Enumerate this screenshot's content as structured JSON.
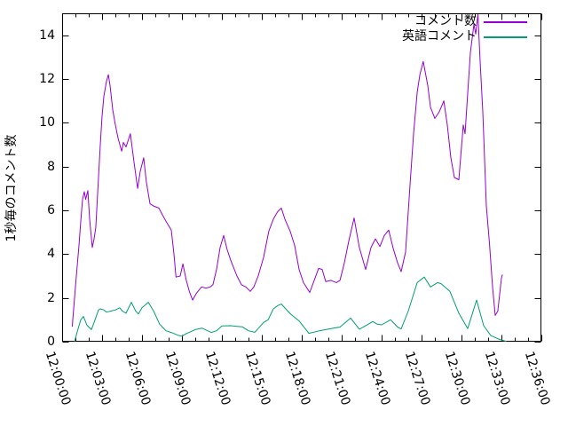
{
  "chart_data": {
    "type": "line",
    "title": "",
    "xlabel": "",
    "ylabel": "1秒毎のコメント数",
    "ylim": [
      0,
      15
    ],
    "y_tick_step": 2,
    "y_tick_labels": [
      "0",
      "2",
      "4",
      "6",
      "8",
      "10",
      "12",
      "14"
    ],
    "x_range_minutes": [
      0,
      36
    ],
    "x_tick_interval_minutes": 3,
    "x_minor_tick_interval_minutes": 1,
    "x_tick_labels": [
      "12:00:00",
      "12:03:00",
      "12:06:00",
      "12:09:00",
      "12:12:00",
      "12:15:00",
      "12:18:00",
      "12:21:00",
      "12:24:00",
      "12:27:00",
      "12:30:00",
      "12:33:00",
      "12:36:00"
    ],
    "grid": false,
    "background_color": "#ffffff",
    "axis_color": "#000000",
    "legend_position": "top-right-inside",
    "series": [
      {
        "name": "コメント数",
        "color": "#9400D3",
        "points": [
          [
            0.77,
            0.7
          ],
          [
            0.8,
            1.0
          ],
          [
            0.93,
            2.0
          ],
          [
            1.07,
            3.0
          ],
          [
            1.27,
            4.4
          ],
          [
            1.4,
            5.5
          ],
          [
            1.53,
            6.5
          ],
          [
            1.67,
            6.85
          ],
          [
            1.77,
            6.5
          ],
          [
            1.93,
            6.9
          ],
          [
            2.07,
            5.6
          ],
          [
            2.27,
            4.3
          ],
          [
            2.4,
            4.7
          ],
          [
            2.53,
            5.2
          ],
          [
            2.73,
            7.5
          ],
          [
            2.87,
            9.0
          ],
          [
            3.0,
            10.3
          ],
          [
            3.13,
            11.2
          ],
          [
            3.33,
            11.9
          ],
          [
            3.47,
            12.2
          ],
          [
            3.6,
            11.7
          ],
          [
            3.8,
            10.6
          ],
          [
            4.0,
            9.9
          ],
          [
            4.2,
            9.3
          ],
          [
            4.47,
            8.7
          ],
          [
            4.6,
            9.1
          ],
          [
            4.8,
            8.9
          ],
          [
            5.13,
            9.5
          ],
          [
            5.4,
            8.2
          ],
          [
            5.67,
            7.0
          ],
          [
            5.87,
            7.8
          ],
          [
            6.13,
            8.4
          ],
          [
            6.33,
            7.3
          ],
          [
            6.6,
            6.3
          ],
          [
            6.87,
            6.2
          ],
          [
            7.27,
            6.1
          ],
          [
            7.53,
            5.8
          ],
          [
            7.8,
            5.5
          ],
          [
            8.2,
            5.1
          ],
          [
            8.4,
            4.0
          ],
          [
            8.55,
            2.95
          ],
          [
            8.87,
            3.0
          ],
          [
            9.07,
            3.55
          ],
          [
            9.33,
            2.8
          ],
          [
            9.55,
            2.3
          ],
          [
            9.8,
            1.9
          ],
          [
            10.07,
            2.2
          ],
          [
            10.47,
            2.5
          ],
          [
            10.8,
            2.45
          ],
          [
            11.13,
            2.5
          ],
          [
            11.33,
            2.6
          ],
          [
            11.6,
            3.3
          ],
          [
            11.87,
            4.3
          ],
          [
            12.13,
            4.85
          ],
          [
            12.4,
            4.2
          ],
          [
            12.67,
            3.7
          ],
          [
            13.13,
            3.0
          ],
          [
            13.47,
            2.6
          ],
          [
            13.8,
            2.5
          ],
          [
            14.13,
            2.3
          ],
          [
            14.4,
            2.5
          ],
          [
            14.73,
            3.0
          ],
          [
            15.13,
            3.85
          ],
          [
            15.53,
            5.05
          ],
          [
            15.87,
            5.6
          ],
          [
            16.2,
            5.95
          ],
          [
            16.47,
            6.1
          ],
          [
            16.73,
            5.6
          ],
          [
            17.13,
            5.05
          ],
          [
            17.47,
            4.4
          ],
          [
            17.8,
            3.3
          ],
          [
            18.13,
            2.7
          ],
          [
            18.6,
            2.25
          ],
          [
            18.87,
            2.7
          ],
          [
            19.27,
            3.35
          ],
          [
            19.53,
            3.3
          ],
          [
            19.8,
            2.75
          ],
          [
            20.2,
            2.8
          ],
          [
            20.6,
            2.7
          ],
          [
            20.87,
            2.8
          ],
          [
            21.2,
            3.6
          ],
          [
            21.53,
            4.6
          ],
          [
            21.93,
            5.65
          ],
          [
            22.33,
            4.3
          ],
          [
            22.8,
            3.3
          ],
          [
            23.2,
            4.3
          ],
          [
            23.53,
            4.7
          ],
          [
            23.87,
            4.35
          ],
          [
            24.2,
            4.85
          ],
          [
            24.53,
            5.1
          ],
          [
            24.87,
            4.25
          ],
          [
            25.2,
            3.6
          ],
          [
            25.47,
            3.2
          ],
          [
            25.8,
            4.1
          ],
          [
            26.13,
            7.1
          ],
          [
            26.4,
            9.5
          ],
          [
            26.67,
            11.4
          ],
          [
            26.87,
            12.2
          ],
          [
            27.13,
            12.8
          ],
          [
            27.47,
            11.7
          ],
          [
            27.67,
            10.7
          ],
          [
            28.0,
            10.2
          ],
          [
            28.33,
            10.5
          ],
          [
            28.67,
            11.0
          ],
          [
            28.93,
            9.9
          ],
          [
            29.2,
            8.4
          ],
          [
            29.47,
            7.5
          ],
          [
            29.8,
            7.4
          ],
          [
            30.13,
            9.9
          ],
          [
            30.27,
            9.5
          ],
          [
            30.67,
            13.2
          ],
          [
            30.93,
            14.5
          ],
          [
            31.07,
            14.05
          ],
          [
            31.23,
            14.95
          ],
          [
            31.4,
            12.8
          ],
          [
            31.6,
            10.5
          ],
          [
            31.87,
            6.2
          ],
          [
            32.1,
            4.5
          ],
          [
            32.33,
            2.5
          ],
          [
            32.53,
            1.2
          ],
          [
            32.73,
            1.4
          ],
          [
            33.0,
            2.9
          ],
          [
            33.07,
            3.05
          ]
        ]
      },
      {
        "name": "英語コメント",
        "color": "#009E73",
        "points": [
          [
            0.93,
            0.0
          ],
          [
            1.13,
            0.45
          ],
          [
            1.4,
            1.0
          ],
          [
            1.6,
            1.15
          ],
          [
            1.87,
            0.75
          ],
          [
            2.2,
            0.55
          ],
          [
            2.47,
            1.0
          ],
          [
            2.73,
            1.45
          ],
          [
            2.87,
            1.5
          ],
          [
            3.13,
            1.45
          ],
          [
            3.33,
            1.35
          ],
          [
            3.67,
            1.4
          ],
          [
            4.0,
            1.45
          ],
          [
            4.33,
            1.55
          ],
          [
            4.53,
            1.4
          ],
          [
            4.8,
            1.3
          ],
          [
            5.2,
            1.8
          ],
          [
            5.53,
            1.4
          ],
          [
            5.73,
            1.27
          ],
          [
            6.0,
            1.55
          ],
          [
            6.47,
            1.8
          ],
          [
            6.87,
            1.4
          ],
          [
            7.33,
            0.8
          ],
          [
            7.8,
            0.5
          ],
          [
            8.2,
            0.42
          ],
          [
            8.67,
            0.3
          ],
          [
            9.0,
            0.25
          ],
          [
            9.33,
            0.37
          ],
          [
            10.0,
            0.55
          ],
          [
            10.5,
            0.62
          ],
          [
            11.2,
            0.42
          ],
          [
            11.6,
            0.5
          ],
          [
            12.0,
            0.72
          ],
          [
            12.67,
            0.73
          ],
          [
            13.13,
            0.7
          ],
          [
            13.53,
            0.68
          ],
          [
            14.0,
            0.5
          ],
          [
            14.47,
            0.43
          ],
          [
            15.13,
            0.88
          ],
          [
            15.47,
            1.0
          ],
          [
            15.87,
            1.5
          ],
          [
            16.2,
            1.65
          ],
          [
            16.47,
            1.72
          ],
          [
            17.13,
            1.28
          ],
          [
            17.8,
            0.95
          ],
          [
            18.53,
            0.38
          ],
          [
            19.33,
            0.5
          ],
          [
            20.2,
            0.6
          ],
          [
            20.87,
            0.67
          ],
          [
            21.67,
            1.08
          ],
          [
            22.33,
            0.57
          ],
          [
            23.0,
            0.8
          ],
          [
            23.33,
            0.92
          ],
          [
            23.67,
            0.8
          ],
          [
            24.0,
            0.77
          ],
          [
            24.67,
            1.0
          ],
          [
            25.2,
            0.67
          ],
          [
            25.47,
            0.58
          ],
          [
            26.0,
            1.4
          ],
          [
            26.67,
            2.7
          ],
          [
            27.2,
            2.95
          ],
          [
            27.67,
            2.5
          ],
          [
            28.2,
            2.7
          ],
          [
            28.47,
            2.65
          ],
          [
            29.13,
            2.3
          ],
          [
            29.8,
            1.3
          ],
          [
            30.47,
            0.6
          ],
          [
            31.13,
            1.9
          ],
          [
            31.67,
            0.73
          ],
          [
            32.2,
            0.28
          ],
          [
            32.87,
            0.1
          ],
          [
            33.33,
            0.02
          ]
        ]
      }
    ]
  }
}
